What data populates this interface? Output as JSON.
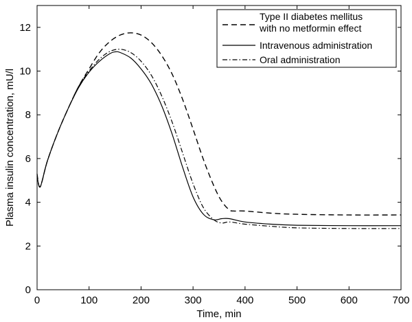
{
  "chart_data": {
    "type": "line",
    "title": "",
    "xlabel": "Time, min",
    "ylabel": "Plasma insulin concentration, mU/l",
    "xlim": [
      0,
      700
    ],
    "ylim": [
      0,
      13
    ],
    "xticks": [
      0,
      100,
      200,
      300,
      400,
      500,
      600,
      700
    ],
    "yticks": [
      0,
      2,
      4,
      6,
      8,
      10,
      12
    ],
    "grid": false,
    "legend_position": "top-right",
    "series": [
      {
        "name": "Type II diabetes mellitus with no metformin effect",
        "name_lines": [
          "Type II diabetes mellitus",
          "with no metformin effect"
        ],
        "style": "dashed",
        "points": [
          [
            0,
            5.3
          ],
          [
            3,
            4.8
          ],
          [
            6,
            4.72
          ],
          [
            10,
            5.0
          ],
          [
            20,
            5.9
          ],
          [
            40,
            7.2
          ],
          [
            60,
            8.3
          ],
          [
            80,
            9.3
          ],
          [
            100,
            10.1
          ],
          [
            120,
            10.85
          ],
          [
            140,
            11.35
          ],
          [
            160,
            11.65
          ],
          [
            180,
            11.75
          ],
          [
            200,
            11.65
          ],
          [
            220,
            11.3
          ],
          [
            240,
            10.7
          ],
          [
            260,
            9.85
          ],
          [
            280,
            8.7
          ],
          [
            300,
            7.35
          ],
          [
            320,
            5.95
          ],
          [
            340,
            4.75
          ],
          [
            355,
            4.05
          ],
          [
            370,
            3.65
          ],
          [
            380,
            3.6
          ],
          [
            400,
            3.6
          ],
          [
            450,
            3.5
          ],
          [
            500,
            3.45
          ],
          [
            600,
            3.42
          ],
          [
            700,
            3.42
          ]
        ]
      },
      {
        "name": "Intravenous administration",
        "name_lines": [
          "Intravenous administration"
        ],
        "style": "solid",
        "points": [
          [
            0,
            5.2
          ],
          [
            3,
            4.8
          ],
          [
            6,
            4.7
          ],
          [
            10,
            5.0
          ],
          [
            20,
            5.9
          ],
          [
            40,
            7.2
          ],
          [
            60,
            8.3
          ],
          [
            80,
            9.25
          ],
          [
            100,
            9.95
          ],
          [
            120,
            10.45
          ],
          [
            140,
            10.8
          ],
          [
            150,
            10.88
          ],
          [
            160,
            10.85
          ],
          [
            180,
            10.6
          ],
          [
            200,
            10.1
          ],
          [
            220,
            9.4
          ],
          [
            240,
            8.4
          ],
          [
            260,
            7.1
          ],
          [
            280,
            5.6
          ],
          [
            300,
            4.25
          ],
          [
            320,
            3.45
          ],
          [
            340,
            3.2
          ],
          [
            355,
            3.25
          ],
          [
            370,
            3.25
          ],
          [
            400,
            3.1
          ],
          [
            450,
            3.0
          ],
          [
            500,
            2.95
          ],
          [
            600,
            2.93
          ],
          [
            700,
            2.93
          ]
        ]
      },
      {
        "name": "Oral administration",
        "name_lines": [
          "Oral administration"
        ],
        "style": "dashdot",
        "points": [
          [
            0,
            5.2
          ],
          [
            3,
            4.8
          ],
          [
            6,
            4.7
          ],
          [
            10,
            5.0
          ],
          [
            20,
            5.9
          ],
          [
            40,
            7.2
          ],
          [
            60,
            8.3
          ],
          [
            80,
            9.3
          ],
          [
            100,
            10.0
          ],
          [
            120,
            10.55
          ],
          [
            140,
            10.9
          ],
          [
            160,
            11.0
          ],
          [
            180,
            10.85
          ],
          [
            200,
            10.45
          ],
          [
            220,
            9.8
          ],
          [
            240,
            8.85
          ],
          [
            260,
            7.65
          ],
          [
            280,
            6.25
          ],
          [
            300,
            4.85
          ],
          [
            320,
            3.75
          ],
          [
            340,
            3.2
          ],
          [
            355,
            3.05
          ],
          [
            370,
            3.1
          ],
          [
            400,
            3.0
          ],
          [
            450,
            2.9
          ],
          [
            500,
            2.83
          ],
          [
            600,
            2.8
          ],
          [
            700,
            2.8
          ]
        ]
      }
    ]
  }
}
